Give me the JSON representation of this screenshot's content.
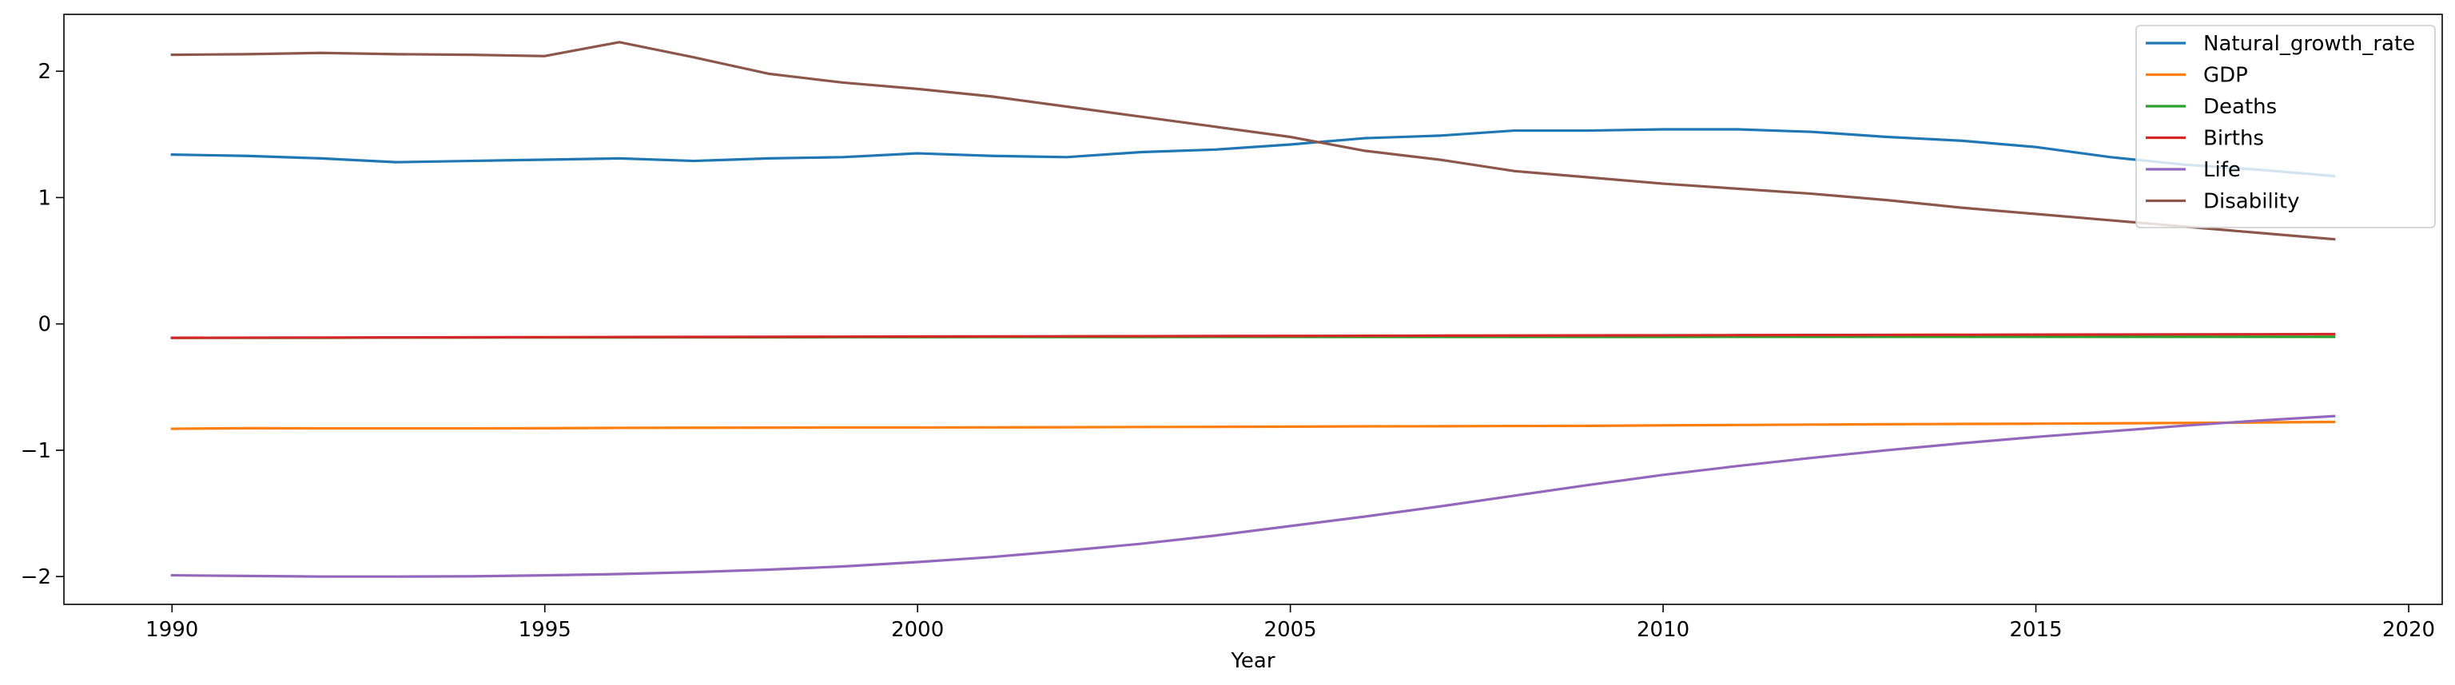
{
  "chart_data": {
    "type": "line",
    "title": "",
    "xlabel": "Year",
    "ylabel": "",
    "xlim": [
      1988.55,
      2020.45
    ],
    "ylim": [
      -2.22,
      2.45
    ],
    "xticks": [
      1990,
      1995,
      2000,
      2005,
      2010,
      2015,
      2020
    ],
    "yticks": [
      -2,
      -1,
      0,
      1,
      2
    ],
    "ytick_labels": [
      "−2",
      "−1",
      "0",
      "1",
      "2"
    ],
    "grid": false,
    "legend_position": "top-right",
    "x": [
      1990,
      1991,
      1992,
      1993,
      1994,
      1995,
      1996,
      1997,
      1998,
      1999,
      2000,
      2001,
      2002,
      2003,
      2004,
      2005,
      2006,
      2007,
      2008,
      2009,
      2010,
      2011,
      2012,
      2013,
      2014,
      2015,
      2016,
      2017,
      2018,
      2019
    ],
    "series": [
      {
        "name": "Natural_growth_rate",
        "color": "#1f77b4",
        "values": [
          1.34,
          1.33,
          1.31,
          1.28,
          1.29,
          1.3,
          1.31,
          1.29,
          1.31,
          1.32,
          1.35,
          1.33,
          1.32,
          1.36,
          1.38,
          1.42,
          1.47,
          1.49,
          1.53,
          1.53,
          1.54,
          1.54,
          1.52,
          1.48,
          1.45,
          1.4,
          1.32,
          1.26,
          1.22,
          1.17
        ]
      },
      {
        "name": "GDP",
        "color": "#ff7f0e",
        "values": [
          -0.83,
          -0.826,
          -0.827,
          -0.827,
          -0.827,
          -0.826,
          -0.823,
          -0.822,
          -0.821,
          -0.82,
          -0.82,
          -0.819,
          -0.818,
          -0.816,
          -0.815,
          -0.813,
          -0.811,
          -0.81,
          -0.808,
          -0.807,
          -0.803,
          -0.8,
          -0.797,
          -0.794,
          -0.792,
          -0.79,
          -0.787,
          -0.784,
          -0.78,
          -0.776
        ]
      },
      {
        "name": "Deaths",
        "color": "#2ca02c",
        "values": [
          -0.11,
          -0.11,
          -0.11,
          -0.108,
          -0.108,
          -0.107,
          -0.107,
          -0.106,
          -0.106,
          -0.105,
          -0.105,
          -0.104,
          -0.104,
          -0.104,
          -0.103,
          -0.103,
          -0.103,
          -0.103,
          -0.103,
          -0.103,
          -0.103,
          -0.102,
          -0.102,
          -0.102,
          -0.102,
          -0.102,
          -0.102,
          -0.102,
          -0.102,
          -0.102
        ]
      },
      {
        "name": "Births",
        "color": "#d62728",
        "values": [
          -0.11,
          -0.109,
          -0.108,
          -0.107,
          -0.106,
          -0.105,
          -0.104,
          -0.103,
          -0.102,
          -0.101,
          -0.1,
          -0.099,
          -0.098,
          -0.097,
          -0.096,
          -0.095,
          -0.094,
          -0.093,
          -0.092,
          -0.091,
          -0.09,
          -0.089,
          -0.088,
          -0.087,
          -0.086,
          -0.085,
          -0.084,
          -0.083,
          -0.082,
          -0.081
        ]
      },
      {
        "name": "Life",
        "color": "#9467bd",
        "values": [
          -1.99,
          -1.995,
          -2.0,
          -2.0,
          -1.998,
          -1.99,
          -1.98,
          -1.965,
          -1.945,
          -1.92,
          -1.885,
          -1.845,
          -1.795,
          -1.74,
          -1.675,
          -1.6,
          -1.525,
          -1.445,
          -1.36,
          -1.275,
          -1.195,
          -1.125,
          -1.06,
          -1.0,
          -0.945,
          -0.895,
          -0.85,
          -0.805,
          -0.765,
          -0.73
        ]
      },
      {
        "name": "Disability",
        "color": "#8c564b",
        "values": [
          2.13,
          2.135,
          2.145,
          2.135,
          2.13,
          2.12,
          2.23,
          2.11,
          1.98,
          1.91,
          1.86,
          1.8,
          1.72,
          1.64,
          1.56,
          1.48,
          1.37,
          1.3,
          1.21,
          1.16,
          1.11,
          1.07,
          1.03,
          0.98,
          0.92,
          0.87,
          0.82,
          0.77,
          0.72,
          0.67
        ]
      }
    ]
  }
}
